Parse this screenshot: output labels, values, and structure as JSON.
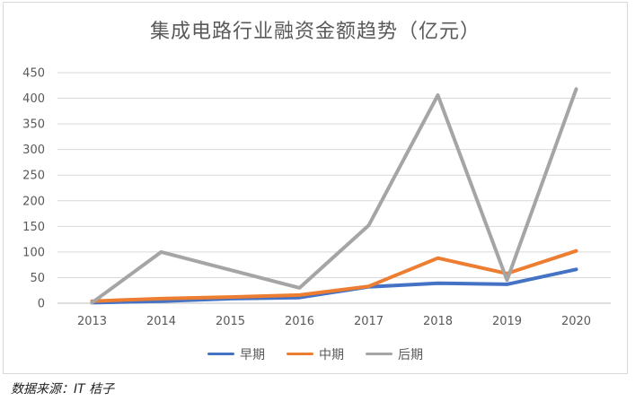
{
  "chart_data": {
    "type": "line",
    "title": "集成电路行业融资金额趋势（亿元）",
    "categories": [
      "2013",
      "2014",
      "2015",
      "2016",
      "2017",
      "2018",
      "2019",
      "2020"
    ],
    "series": [
      {
        "name": "早期",
        "color": "#4472c4",
        "values": [
          1,
          4,
          9,
          11,
          32,
          39,
          37,
          66
        ]
      },
      {
        "name": "中期",
        "color": "#ed7d31",
        "values": [
          4,
          9,
          12,
          16,
          33,
          88,
          58,
          102
        ]
      },
      {
        "name": "后期",
        "color": "#a5a5a5",
        "values": [
          1,
          100,
          65,
          30,
          152,
          406,
          45,
          418
        ]
      }
    ],
    "ylim": [
      0,
      450
    ],
    "yticks": [
      0,
      50,
      100,
      150,
      200,
      250,
      300,
      350,
      400,
      450
    ],
    "grid": true,
    "legend_position": "bottom"
  },
  "source_note": "数据来源：IT 桔子"
}
